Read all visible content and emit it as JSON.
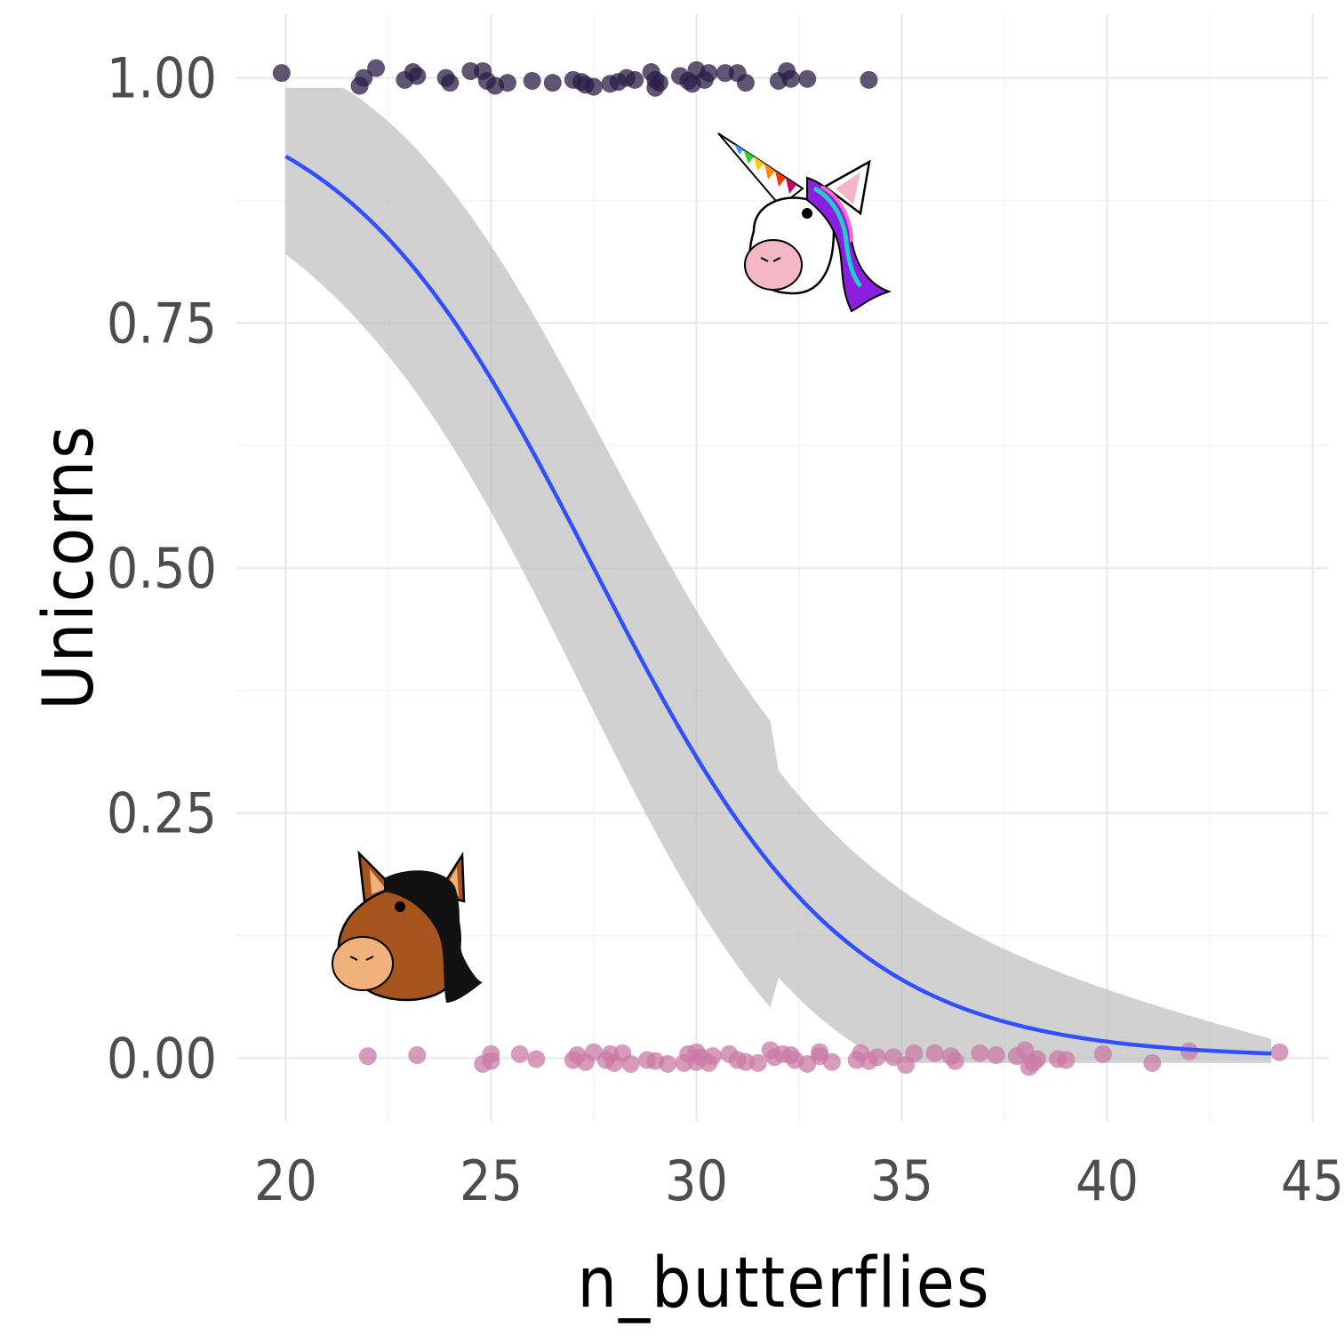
{
  "chart_data": {
    "type": "scatter",
    "xlabel": "n_butterflies",
    "ylabel": "Unicorns",
    "xlim": [
      18.8,
      45.4
    ],
    "ylim": [
      -0.065,
      1.065
    ],
    "x_ticks": [
      20,
      25,
      30,
      35,
      40,
      45
    ],
    "x_tick_labels": [
      "20",
      "25",
      "30",
      "35",
      "40",
      "45"
    ],
    "y_ticks": [
      0,
      0.25,
      0.5,
      0.75,
      1.0
    ],
    "y_tick_labels": [
      "0.00",
      "0.25",
      "0.50",
      "0.75",
      "1.00"
    ],
    "grid": true,
    "colors": {
      "unicorn_points": "#2b1d45",
      "horse_points": "#c97aa6",
      "fit_line": "#3050ff",
      "ribbon": "#b8b8b8"
    },
    "series": [
      {
        "points": [
          [
            19.9,
            1.005
          ],
          [
            21.8,
            0.992
          ],
          [
            21.9,
            1.0
          ],
          [
            22.2,
            1.01
          ],
          [
            22.9,
            0.998
          ],
          [
            23.1,
            1.006
          ],
          [
            23.2,
            1.002
          ],
          [
            23.9,
            1.0
          ],
          [
            24.0,
            0.995
          ],
          [
            24.5,
            1.007
          ],
          [
            24.8,
            1.007
          ],
          [
            24.9,
            0.997
          ],
          [
            25.1,
            0.992
          ],
          [
            25.4,
            0.995
          ],
          [
            26.0,
            0.997
          ],
          [
            26.5,
            0.995
          ],
          [
            27.0,
            0.998
          ],
          [
            27.2,
            0.996
          ],
          [
            27.3,
            0.993
          ],
          [
            27.5,
            0.991
          ],
          [
            27.9,
            0.994
          ],
          [
            28.1,
            0.996
          ],
          [
            28.3,
            1.0
          ],
          [
            28.5,
            0.998
          ],
          [
            28.9,
            1.006
          ],
          [
            29.0,
            0.998
          ],
          [
            29.0,
            0.99
          ],
          [
            29.1,
            0.995
          ],
          [
            29.6,
            1.002
          ],
          [
            29.8,
            0.997
          ],
          [
            29.9,
            0.994
          ],
          [
            30.0,
            1.008
          ],
          [
            30.2,
            0.998
          ],
          [
            30.3,
            1.005
          ],
          [
            30.7,
            1.005
          ],
          [
            31.0,
            1.005
          ],
          [
            31.2,
            0.995
          ],
          [
            32.0,
            0.997
          ],
          [
            32.2,
            1.007
          ],
          [
            32.3,
            0.999
          ],
          [
            32.7,
            0.999
          ],
          [
            34.2,
            0.998
          ]
        ]
      },
      {
        "points": [
          [
            22.0,
            0.002
          ],
          [
            23.2,
            0.003
          ],
          [
            24.8,
            -0.006
          ],
          [
            25.0,
            -0.003
          ],
          [
            25.0,
            0.004
          ],
          [
            25.7,
            0.004
          ],
          [
            26.1,
            -0.001
          ],
          [
            27.0,
            -0.002
          ],
          [
            27.1,
            0.003
          ],
          [
            27.3,
            -0.004
          ],
          [
            27.5,
            0.006
          ],
          [
            27.8,
            -0.002
          ],
          [
            27.9,
            0.004
          ],
          [
            28.0,
            -0.005
          ],
          [
            28.2,
            0.005
          ],
          [
            28.4,
            -0.006
          ],
          [
            28.8,
            -0.002
          ],
          [
            29.0,
            -0.003
          ],
          [
            29.3,
            -0.006
          ],
          [
            29.7,
            -0.005
          ],
          [
            29.8,
            0.004
          ],
          [
            30.0,
            0.006
          ],
          [
            30.0,
            -0.004
          ],
          [
            30.1,
            0.001
          ],
          [
            30.3,
            -0.005
          ],
          [
            30.4,
            0.002
          ],
          [
            30.8,
            0.004
          ],
          [
            31.0,
            -0.002
          ],
          [
            31.2,
            -0.004
          ],
          [
            31.5,
            -0.005
          ],
          [
            31.8,
            0.008
          ],
          [
            31.9,
            0.001
          ],
          [
            32.1,
            0.004
          ],
          [
            32.3,
            0.003
          ],
          [
            32.4,
            -0.002
          ],
          [
            32.7,
            -0.006
          ],
          [
            33.0,
            0.006
          ],
          [
            33.0,
            0.002
          ],
          [
            33.3,
            -0.004
          ],
          [
            33.9,
            -0.002
          ],
          [
            34.0,
            0.005
          ],
          [
            34.2,
            -0.003
          ],
          [
            34.4,
            0.001
          ],
          [
            34.8,
            0.001
          ],
          [
            35.1,
            -0.007
          ],
          [
            35.3,
            0.005
          ],
          [
            35.8,
            0.005
          ],
          [
            36.2,
            0.002
          ],
          [
            36.3,
            -0.003
          ],
          [
            36.9,
            0.005
          ],
          [
            37.3,
            0.003
          ],
          [
            37.8,
            0.002
          ],
          [
            38.0,
            0.008
          ],
          [
            38.1,
            -0.009
          ],
          [
            38.2,
            -0.005
          ],
          [
            38.3,
            -0.001
          ],
          [
            38.8,
            -0.001
          ],
          [
            39.0,
            -0.002
          ],
          [
            39.9,
            0.004
          ],
          [
            41.1,
            -0.005
          ],
          [
            42.0,
            0.007
          ],
          [
            44.2,
            0.006
          ]
        ]
      }
    ],
    "fit": {
      "kind": "logistic",
      "x_range": [
        20,
        44
      ],
      "curve": [
        [
          20,
          0.92
        ],
        [
          27.5,
          0.5
        ],
        [
          44,
          0.005
        ]
      ],
      "ribbon_at_x20": [
        0.775,
        0.975
      ],
      "ribbon_at_x44": [
        0.0,
        0.03
      ]
    }
  },
  "stickers": [
    {
      "icon": "unicorn-head-icon"
    },
    {
      "icon": "horse-head-icon"
    }
  ]
}
